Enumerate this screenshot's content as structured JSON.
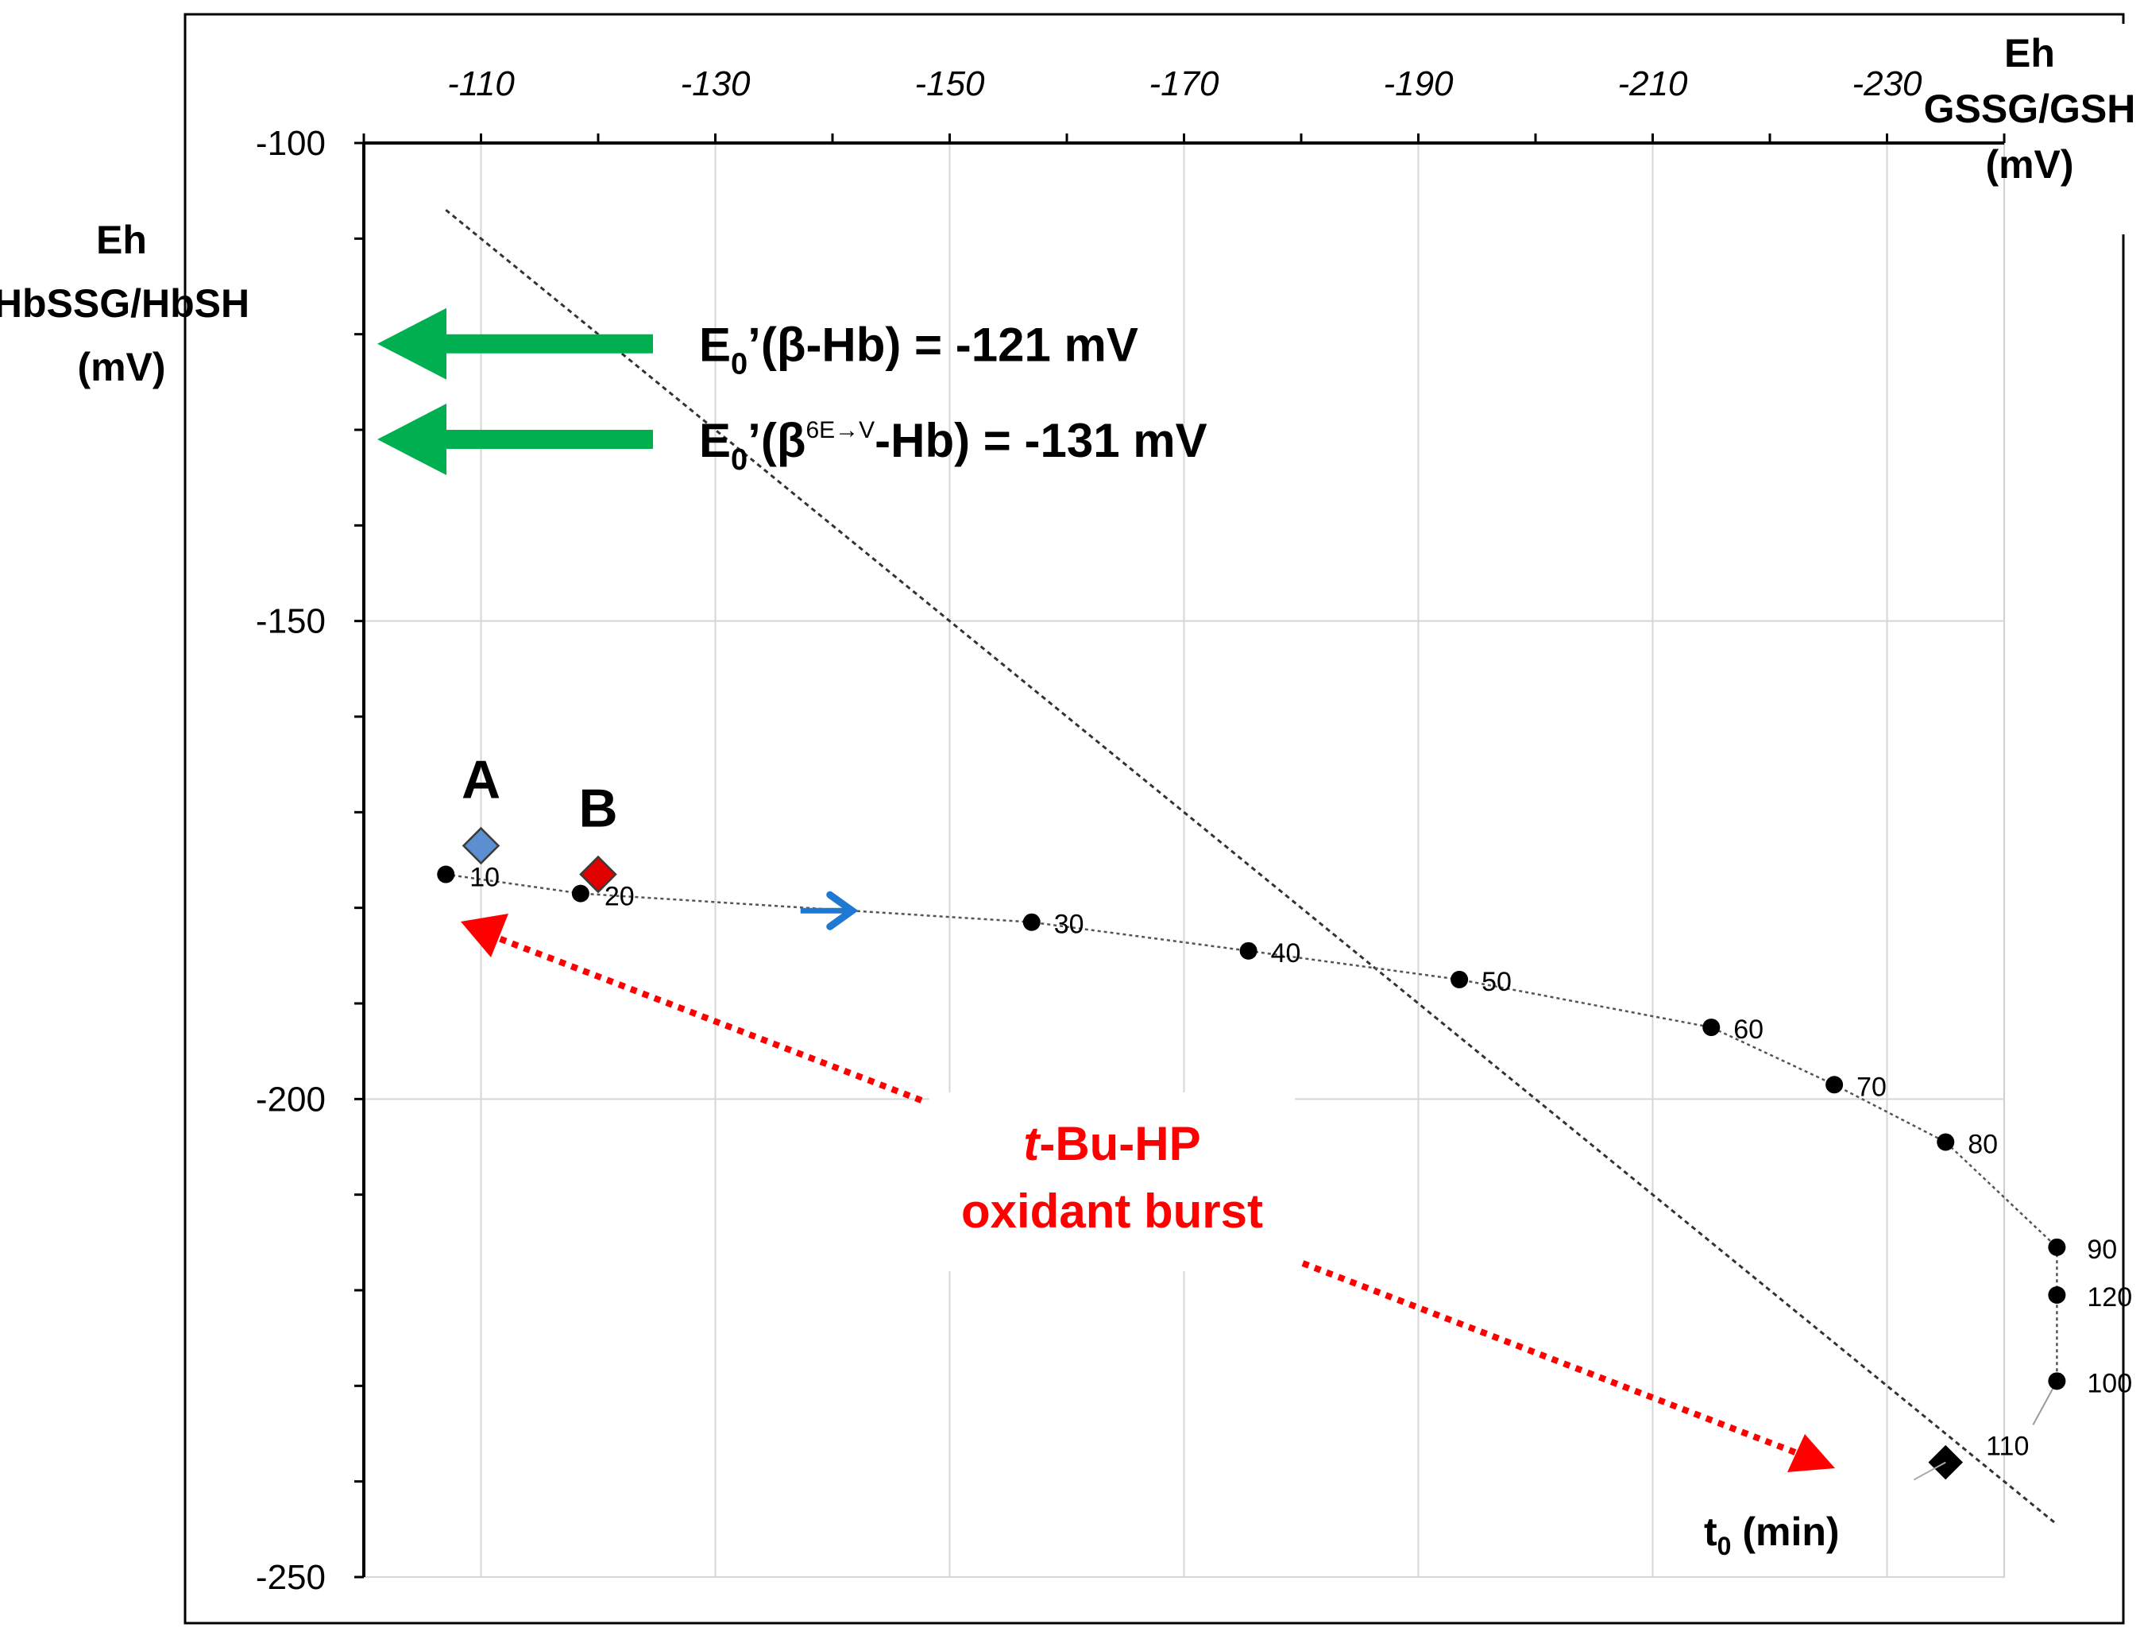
{
  "chart_data": {
    "type": "scatter",
    "x_axis": {
      "label_lines": [
        "Eh",
        "GSSG/GSH",
        "(mV)"
      ],
      "ticks": [
        -110,
        -130,
        -150,
        -170,
        -190,
        -210,
        -230
      ],
      "tick_labels": [
        "-110",
        "-130",
        "-150",
        "-170",
        "-190",
        "-210",
        "-230"
      ],
      "range": [
        -100,
        -240
      ],
      "position": "top",
      "reversed": true
    },
    "y_axis": {
      "label_lines": [
        "Eh",
        "HbSSG/HbSH",
        "(mV)"
      ],
      "ticks": [
        -100,
        -150,
        -200,
        -250
      ],
      "tick_labels": [
        "-100",
        "-150",
        "-200",
        "-250"
      ],
      "range": [
        -250,
        -100
      ]
    },
    "grid": true,
    "series": [
      {
        "points": [
          {
            "x": -107,
            "y": -176.5,
            "label": "10"
          },
          {
            "x": -118.5,
            "y": -178.5,
            "label": "20"
          },
          {
            "x": -157,
            "y": -181.5,
            "label": "30"
          },
          {
            "x": -175.5,
            "y": -184.5,
            "label": "40"
          },
          {
            "x": -193.5,
            "y": -187.5,
            "label": "50"
          },
          {
            "x": -215,
            "y": -192.5,
            "label": "60"
          },
          {
            "x": -225.5,
            "y": -198.5,
            "label": "70"
          },
          {
            "x": -235,
            "y": -204.5,
            "label": "80"
          },
          {
            "x": -244.5,
            "y": -215.5,
            "label": "90"
          },
          {
            "x": -244.5,
            "y": -220.5,
            "label": "120"
          },
          {
            "x": -244.5,
            "y": -229.5,
            "label": "100"
          }
        ],
        "hidden_label": "110"
      }
    ],
    "reference_line": {
      "x1": -107,
      "y1": -107,
      "x2": -244.5,
      "y2": -244.5
    },
    "special_points": [
      {
        "name": "A",
        "x": -110,
        "y": -173.5,
        "color": "#5b8fd0"
      },
      {
        "name": "B",
        "x": -120,
        "y": -176.5,
        "color": "#e00000"
      },
      {
        "name": "t0",
        "x": -235,
        "y": -238,
        "color": "#000000"
      }
    ],
    "reference_levels": [
      {
        "y": -121,
        "label_main": "E",
        "label_sub": "0",
        "label_rest": "’(β-Hb) = -121 mV",
        "color": "#00b050"
      },
      {
        "y": -131,
        "label_main": "E",
        "label_sub": "0",
        "label_rest_pre": "’(β",
        "label_sup": "6E→V",
        "label_rest_post": "-Hb) = -131 mV",
        "color": "#00b050"
      }
    ],
    "annotations": {
      "burst_line1_italic": "t",
      "burst_line1_rest": "-Bu-HP",
      "burst_line2": "oxidant burst",
      "burst_color": "#ff0000",
      "arrow_color": "#1f78d1",
      "t0_main": "t",
      "t0_sub": "0",
      "t0_rest": " (min)"
    }
  }
}
